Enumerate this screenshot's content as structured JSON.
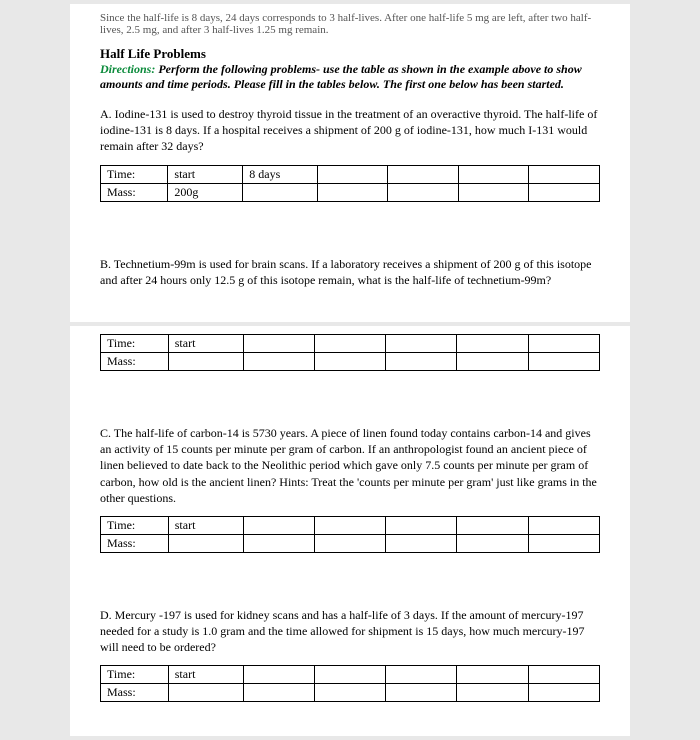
{
  "frag": "Since the half-life is 8 days, 24 days corresponds to 3 half-lives. After one half-life 5 mg are left, after two half-lives, 2.5 mg, and after 3 half-lives 1.25 mg remain.",
  "title": "Half Life Problems",
  "dir_label": "Directions:",
  "directions": "Perform the following problems- use the table as shown in the example above to show amounts and time periods. Please fill in the tables below. The first one below has been started.",
  "problems": {
    "A": "A. Iodine-131 is used to destroy thyroid tissue in the treatment of an overactive thyroid. The half-life of iodine-131 is 8 days. If a hospital receives a shipment of 200 g of iodine-131, how much I-131 would remain after 32 days?",
    "B": "B. Technetium-99m is used for brain scans. If a laboratory receives a shipment of 200 g of this isotope and after 24 hours only 12.5 g of this isotope remain, what is the half-life of technetium-99m?",
    "C": "C. The half-life of carbon-14 is 5730 years. A piece of linen found today contains carbon-14 and gives an activity of 15 counts per minute per gram of carbon. If an anthropologist found an ancient piece of linen believed to date back to the Neolithic period which gave only 7.5 counts per minute per gram of carbon, how old is the ancient linen? Hints: Treat the 'counts per minute per gram' just like grams in the other questions.",
    "D": "D. Mercury -197 is used for kidney scans and has a half-life of 3 days. If the amount of mercury-197 needed for a study is 1.0 gram and the time allowed for shipment is 15 days, how much mercury-197 will need to be ordered?"
  },
  "row_labels": {
    "time": "Time:",
    "mass": "Mass:"
  },
  "tableA": {
    "time": [
      "start",
      "8 days",
      "",
      "",
      "",
      ""
    ],
    "mass": [
      "200g",
      "",
      "",
      "",
      "",
      ""
    ]
  },
  "tableB": {
    "time": [
      "start",
      "",
      "",
      "",
      "",
      ""
    ],
    "mass": [
      "",
      "",
      "",
      "",
      "",
      ""
    ]
  },
  "tableC": {
    "time": [
      "start",
      "",
      "",
      "",
      "",
      ""
    ],
    "mass": [
      "",
      "",
      "",
      "",
      "",
      ""
    ]
  },
  "tableD": {
    "time": [
      "start",
      "",
      "",
      "",
      "",
      ""
    ],
    "mass": [
      "",
      "",
      "",
      "",
      "",
      ""
    ]
  }
}
